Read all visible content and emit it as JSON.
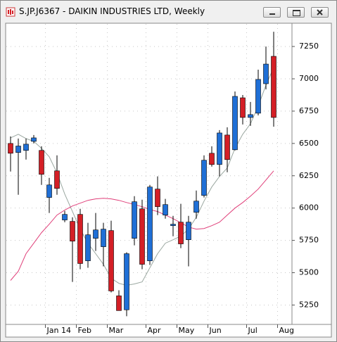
{
  "chart_data": {
    "type": "candlestick",
    "title": "S.JP.J6367 - DAIKIN INDUSTRIES LTD, Weekly",
    "categories": [
      null,
      null,
      null,
      null,
      null,
      "Jan 14",
      null,
      null,
      null,
      "Feb",
      null,
      null,
      null,
      "Mar",
      null,
      null,
      null,
      null,
      "Apr",
      null,
      null,
      null,
      "May",
      null,
      null,
      null,
      "Jun",
      null,
      null,
      null,
      null,
      "Jul",
      null,
      null,
      null,
      "Aug"
    ],
    "open": [
      6500,
      6430,
      6446,
      6516,
      6446,
      6082,
      6288,
      5908,
      5897,
      5951,
      5592,
      5766,
      5701,
      5826,
      5321,
      5213,
      5766,
      5994,
      5592,
      6147,
      5946,
      5864,
      5891,
      5755,
      5967,
      6098,
      6424,
      6337,
      6565,
      6451,
      6853,
      6701,
      6734,
      6962,
      7174,
      null
    ],
    "high": [
      6554,
      6538,
      6538,
      6565,
      6478,
      6234,
      6408,
      5978,
      5929,
      5994,
      5886,
      5962,
      5886,
      5902,
      5364,
      5658,
      6092,
      6065,
      6179,
      6245,
      6071,
      5940,
      6033,
      5940,
      6136,
      6408,
      6478,
      6603,
      6625,
      6902,
      6875,
      6821,
      7071,
      7250,
      7364,
      null
    ],
    "low": [
      6283,
      6103,
      6375,
      6500,
      6179,
      5962,
      6103,
      5891,
      5429,
      5527,
      5538,
      5668,
      5549,
      5348,
      5207,
      5163,
      5712,
      5527,
      5560,
      5946,
      5918,
      5782,
      5690,
      5549,
      5918,
      6082,
      6321,
      6245,
      6277,
      6446,
      6647,
      6636,
      6717,
      6918,
      6630,
      null
    ],
    "close": [
      6424,
      6480,
      6494,
      6543,
      6261,
      6179,
      6152,
      5951,
      5744,
      5571,
      5793,
      5831,
      5837,
      5359,
      5207,
      5647,
      6049,
      5565,
      6163,
      6011,
      6027,
      5875,
      5723,
      5891,
      6054,
      6370,
      6337,
      6581,
      6375,
      6864,
      6701,
      6723,
      6995,
      7114,
      6701,
      null
    ],
    "up_color": "#1f6fd6",
    "down_color": "#d41f26",
    "overlays": [
      {
        "color": "#9aa7a0",
        "values": [
          6543,
          6571,
          6538,
          6516,
          6462,
          6397,
          6272,
          6109,
          5973,
          5837,
          5728,
          5647,
          5565,
          5457,
          5418,
          5402,
          5413,
          5429,
          5538,
          5647,
          5728,
          5755,
          5783,
          5837,
          5929,
          6054,
          6163,
          6245,
          6310,
          6462,
          6571,
          6652,
          6788,
          6951,
          7087,
          null
        ]
      },
      {
        "color": "#e0407a",
        "values": [
          5440,
          5511,
          5647,
          5728,
          5810,
          5875,
          5946,
          5984,
          6016,
          6038,
          6060,
          6071,
          6076,
          6071,
          6060,
          6043,
          6027,
          6011,
          5989,
          5973,
          5946,
          5918,
          5886,
          5853,
          5837,
          5842,
          5864,
          5891,
          5946,
          6000,
          6043,
          6092,
          6147,
          6217,
          6288,
          null
        ]
      }
    ],
    "ylim": [
      5100,
      7430
    ],
    "yticks": [
      5250,
      5500,
      5750,
      6000,
      6250,
      6500,
      6750,
      7000,
      7250
    ],
    "grid": true
  }
}
